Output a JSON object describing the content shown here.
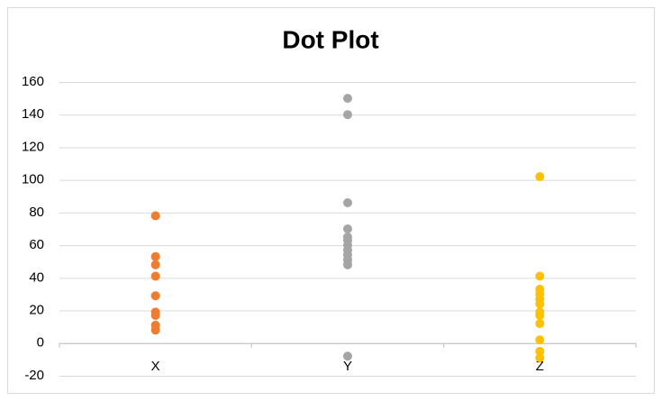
{
  "chart_data": {
    "type": "dot",
    "title": "Dot Plot",
    "categories": [
      "X",
      "Y",
      "Z"
    ],
    "values": [
      [
        78,
        53,
        48,
        41,
        29,
        19,
        17,
        11,
        8
      ],
      [
        150,
        140,
        86,
        70,
        65,
        63,
        60,
        57,
        54,
        51,
        48,
        -8
      ],
      [
        102,
        41,
        33,
        30,
        27,
        24,
        19,
        17,
        12,
        2,
        -5,
        -9
      ]
    ],
    "colors": [
      "#ed7d31",
      "#a5a5a5",
      "#ffc000"
    ],
    "ylim": [
      -20,
      160
    ],
    "yticks": [
      -20,
      0,
      20,
      40,
      60,
      80,
      100,
      120,
      140,
      160
    ],
    "grid": true
  }
}
